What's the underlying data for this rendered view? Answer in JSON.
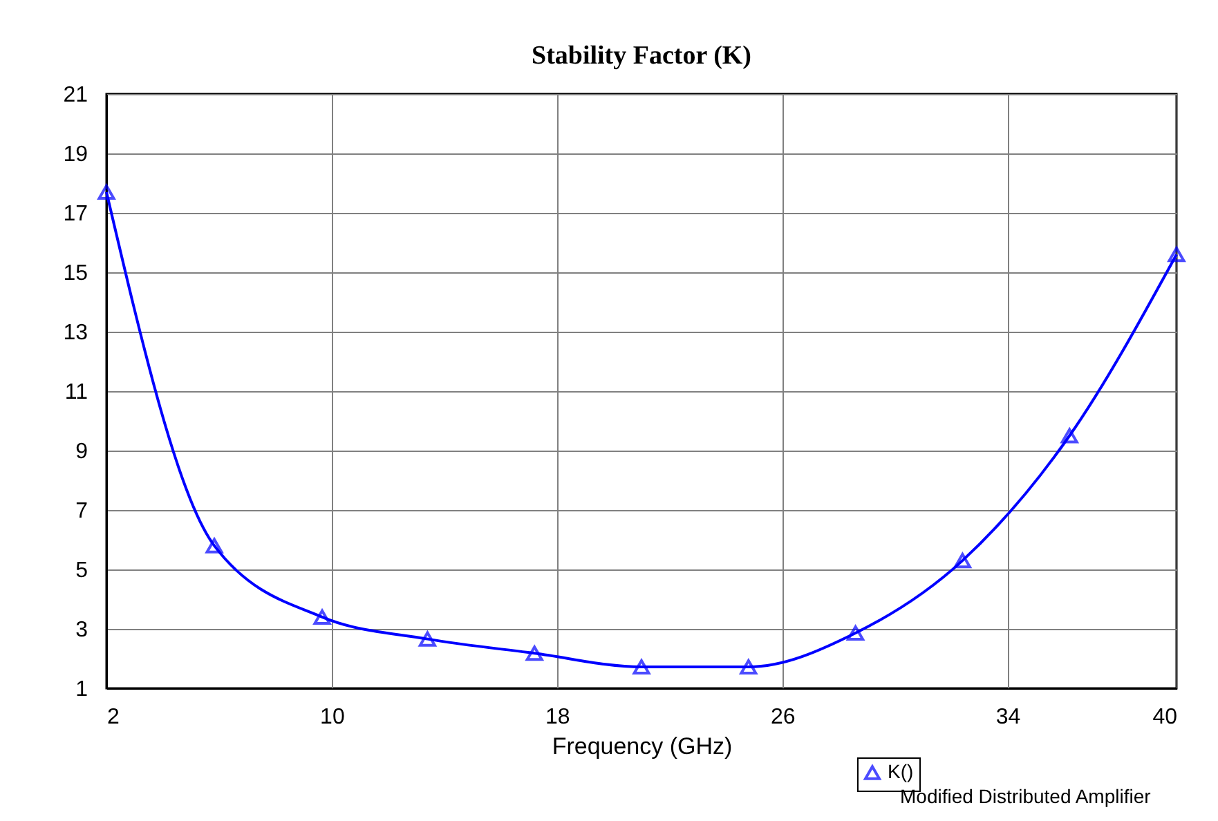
{
  "chart_data": {
    "type": "line",
    "title": "Stability Factor (K)",
    "xlabel": "Frequency (GHz)",
    "x": [
      2,
      5.83,
      9.66,
      13.4,
      17.2,
      21.0,
      24.8,
      28.6,
      32.4,
      36.2,
      40
    ],
    "series": [
      {
        "name": "K()",
        "color": "#0000ff",
        "values": [
          17.7,
          5.8,
          3.4,
          2.66,
          2.18,
          1.72,
          1.72,
          2.86,
          5.3,
          9.5,
          15.6
        ]
      }
    ],
    "xlim": [
      2,
      40
    ],
    "xticks": [
      2,
      10,
      18,
      26,
      34,
      40
    ],
    "ylim": [
      1,
      21
    ],
    "yticks": [
      1,
      3,
      5,
      7,
      9,
      11,
      13,
      15,
      17,
      19,
      21
    ],
    "grid": true,
    "marker": "triangle",
    "line_style": "solid",
    "legend": "bottom right",
    "annotations": [
      "Modified Distributed Amplifier"
    ]
  }
}
